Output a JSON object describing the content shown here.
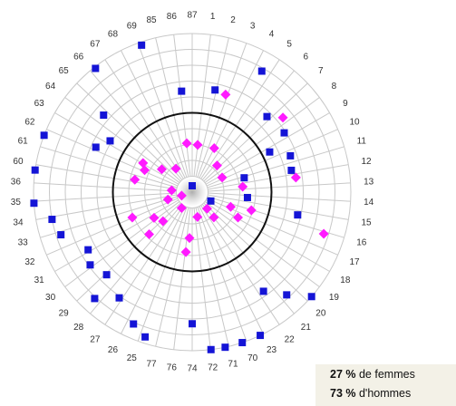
{
  "chart_data": {
    "type": "polar-scatter",
    "spokes": [
      "1",
      "2",
      "3",
      "4",
      "5",
      "6",
      "7",
      "8",
      "9",
      "10",
      "11",
      "12",
      "13",
      "14",
      "15",
      "16",
      "17",
      "18",
      "19",
      "20",
      "21",
      "22",
      "23",
      "70",
      "71",
      "72",
      "74",
      "76",
      "77",
      "25",
      "26",
      "27",
      "28",
      "29",
      "30",
      "31",
      "32",
      "33",
      "34",
      "35",
      "36",
      "60",
      "61",
      "62",
      "63",
      "64",
      "65",
      "66",
      "67",
      "68",
      "69",
      "85",
      "86",
      "87"
    ],
    "rlim": [
      0,
      10
    ],
    "rticks": [
      1,
      2,
      3,
      4,
      5,
      6,
      7,
      8,
      9,
      10
    ],
    "reference_ring": 5,
    "series": [
      {
        "marker": "square",
        "color": "#1414d6",
        "theta": [
          341,
          322,
          354,
          12.6,
          29.9,
          311,
          295,
          302,
          44.7,
          57.2,
          62.6,
          69.7,
          77.6,
          291,
          278,
          266,
          259,
          252,
          241,
          234.5,
          226,
          222.5,
          214.6,
          204,
          198,
          180,
          173.2,
          168,
          161.6,
          154.6,
          144.3,
          137.4,
          131.2,
          102.2,
          74.6,
          95.6,
          115.5,
          0
        ],
        "r": [
          9.8,
          9.9,
          6.4,
          6.6,
          8.8,
          7.4,
          6.7,
          6.1,
          6.7,
          6.9,
          5.5,
          6.6,
          6.4,
          10,
          10,
          10,
          9.0,
          8.7,
          7.5,
          7.9,
          7.5,
          9.1,
          8.1,
          9.1,
          9.6,
          8.3,
          10,
          10,
          10,
          10,
          7.7,
          8.8,
          10,
          6.8,
          3.4,
          3.5,
          1.3,
          0.4
        ]
      },
      {
        "marker": "diamond",
        "color": "#ff1aff",
        "theta": [
          18.9,
          6.6,
          26.6,
          50.6,
          82,
          107.6,
          353.7,
          300.6,
          294.8,
          282.3,
          307,
          325.3,
          83.9,
          107,
          119,
          111,
          139.4,
          168,
          213.7,
          253,
          225,
          236,
          247,
          225.6,
          183.4,
          186,
          64,
          43,
          275,
          251.6,
          138
        ],
        "r": [
          6.5,
          3.0,
          3.1,
          7.4,
          6.6,
          8.7,
          3.1,
          3.6,
          3.3,
          3.7,
          2.4,
          1.8,
          3.2,
          3.9,
          3.3,
          2.6,
          2.1,
          1.6,
          1.2,
          1.6,
          2.6,
          2.9,
          4.1,
          3.8,
          2.9,
          3.8,
          2.1,
          2.3,
          1.3,
          0.7,
          1.4
        ]
      }
    ],
    "summary": [
      {
        "percent": "27 %",
        "text": "de femmes"
      },
      {
        "percent": "73 %",
        "text": "d'hommes"
      }
    ]
  }
}
